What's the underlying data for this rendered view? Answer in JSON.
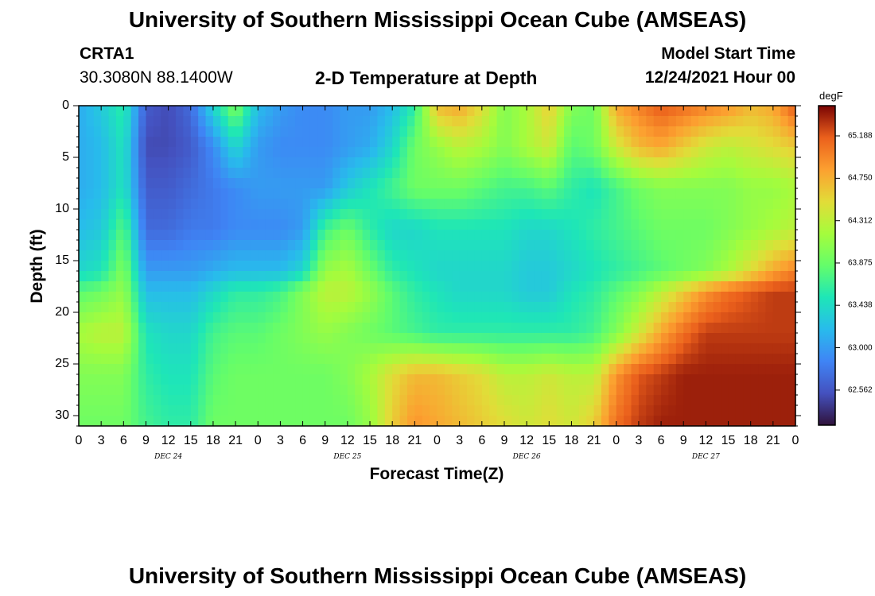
{
  "title": "University of Southern Mississippi Ocean Cube (AMSEAS)",
  "station": {
    "name": "CRTA1",
    "coords": "30.3080N  88.1400W"
  },
  "subtitle": "2-D Temperature at Depth",
  "model_start": {
    "label": "Model Start Time",
    "value": "12/24/2021 Hour 00"
  },
  "chart_data": {
    "type": "heatmap",
    "xlabel": "Forecast Time(Z)",
    "ylabel": "Depth (ft)",
    "xlim_hours": [
      0,
      96
    ],
    "ylim": [
      0,
      31
    ],
    "x_tick_labels": [
      "0",
      "3",
      "6",
      "9",
      "12",
      "15",
      "18",
      "21",
      "0",
      "3",
      "6",
      "9",
      "12",
      "15",
      "18",
      "21",
      "0",
      "3",
      "6",
      "9",
      "12",
      "15",
      "18",
      "21",
      "0",
      "3",
      "6",
      "9",
      "12",
      "15",
      "18",
      "21",
      "0"
    ],
    "day_labels": [
      "DEC 24",
      "DEC 25",
      "DEC 26",
      "DEC 27"
    ],
    "y_ticks": [
      0,
      5,
      10,
      15,
      20,
      25,
      30
    ],
    "colorbar": {
      "unit": "degF",
      "range": [
        62.2,
        65.5
      ],
      "tick_labels": [
        "65.188",
        "64.750",
        "64.312",
        "63.875",
        "63.438",
        "63.000",
        "62.562"
      ],
      "tick_values": [
        65.188,
        64.75,
        64.312,
        63.875,
        63.438,
        63.0,
        62.562
      ]
    },
    "temperature_grid": {
      "x_hours": [
        0,
        3,
        6,
        9,
        12,
        15,
        18,
        21,
        24,
        27,
        30,
        33,
        36,
        39,
        42,
        45,
        48,
        51,
        54,
        57,
        60,
        63,
        66,
        69,
        72,
        75,
        78,
        81,
        84,
        87,
        90,
        93,
        96
      ],
      "depths_ft": [
        0,
        4,
        8,
        12,
        16,
        18,
        22,
        26,
        31
      ],
      "values_degF": [
        [
          63.1,
          63.3,
          63.6,
          62.6,
          62.5,
          62.7,
          63.4,
          64.0,
          63.2,
          63.0,
          62.9,
          62.9,
          63.0,
          63.0,
          63.2,
          63.6,
          64.7,
          64.8,
          64.5,
          64.0,
          64.2,
          64.6,
          64.0,
          63.9,
          64.8,
          65.0,
          65.2,
          65.1,
          65.0,
          64.9,
          64.7,
          64.8,
          65.2
        ],
        [
          63.1,
          63.2,
          63.5,
          62.5,
          62.5,
          62.6,
          62.9,
          63.4,
          63.0,
          62.9,
          62.9,
          62.9,
          63.0,
          63.1,
          63.4,
          63.9,
          64.1,
          64.3,
          64.2,
          64.0,
          64.2,
          64.4,
          63.8,
          63.9,
          64.4,
          64.7,
          64.8,
          64.6,
          64.4,
          64.3,
          64.4,
          64.5,
          64.6
        ],
        [
          63.1,
          63.2,
          63.5,
          62.6,
          62.6,
          62.7,
          62.8,
          62.9,
          63.0,
          63.0,
          63.0,
          63.0,
          63.3,
          63.5,
          63.7,
          63.9,
          63.9,
          63.9,
          63.8,
          63.7,
          63.7,
          63.8,
          63.6,
          63.5,
          63.7,
          63.9,
          64.0,
          64.0,
          64.0,
          64.0,
          64.1,
          64.1,
          64.2
        ],
        [
          63.2,
          63.3,
          63.8,
          62.7,
          62.7,
          62.8,
          62.8,
          62.9,
          62.9,
          62.9,
          63.0,
          63.7,
          63.9,
          63.6,
          63.4,
          63.4,
          63.5,
          63.5,
          63.5,
          63.5,
          63.4,
          63.4,
          63.5,
          63.6,
          63.7,
          63.8,
          63.9,
          63.9,
          63.9,
          64.0,
          64.1,
          64.2,
          64.3
        ],
        [
          63.4,
          63.5,
          64.0,
          63.0,
          63.0,
          63.0,
          63.1,
          63.2,
          63.2,
          63.2,
          63.4,
          64.1,
          64.2,
          63.9,
          63.6,
          63.5,
          63.4,
          63.4,
          63.4,
          63.4,
          63.3,
          63.3,
          63.4,
          63.5,
          63.6,
          63.7,
          63.8,
          63.9,
          64.0,
          64.2,
          64.5,
          64.8,
          65.0
        ],
        [
          63.8,
          63.9,
          64.1,
          63.2,
          63.2,
          63.2,
          63.4,
          63.6,
          63.6,
          63.7,
          64.0,
          64.3,
          64.3,
          64.1,
          63.8,
          63.6,
          63.5,
          63.4,
          63.4,
          63.4,
          63.3,
          63.3,
          63.5,
          63.6,
          63.8,
          64.0,
          64.3,
          64.6,
          64.9,
          65.1,
          65.2,
          65.3,
          65.3
        ],
        [
          64.2,
          64.3,
          64.3,
          63.5,
          63.4,
          63.4,
          63.7,
          63.8,
          63.8,
          63.9,
          64.0,
          64.1,
          64.0,
          63.9,
          63.8,
          63.7,
          63.6,
          63.6,
          63.6,
          63.6,
          63.6,
          63.6,
          63.6,
          63.7,
          64.0,
          64.4,
          64.8,
          65.1,
          65.3,
          65.3,
          65.3,
          65.3,
          65.3
        ],
        [
          64.0,
          64.0,
          64.0,
          63.6,
          63.5,
          63.5,
          63.8,
          63.9,
          63.9,
          63.9,
          63.9,
          63.9,
          64.0,
          64.2,
          64.5,
          64.7,
          64.7,
          64.6,
          64.5,
          64.3,
          64.3,
          64.4,
          64.3,
          64.3,
          64.9,
          65.2,
          65.3,
          65.4,
          65.4,
          65.4,
          65.4,
          65.4,
          65.4
        ],
        [
          63.9,
          63.9,
          63.9,
          63.7,
          63.6,
          63.6,
          63.9,
          63.9,
          63.9,
          63.9,
          63.9,
          63.9,
          63.9,
          64.1,
          64.6,
          64.9,
          64.8,
          64.7,
          64.6,
          64.5,
          64.4,
          64.5,
          64.4,
          64.6,
          65.1,
          65.3,
          65.4,
          65.4,
          65.4,
          65.4,
          65.4,
          65.4,
          65.4
        ]
      ]
    }
  }
}
